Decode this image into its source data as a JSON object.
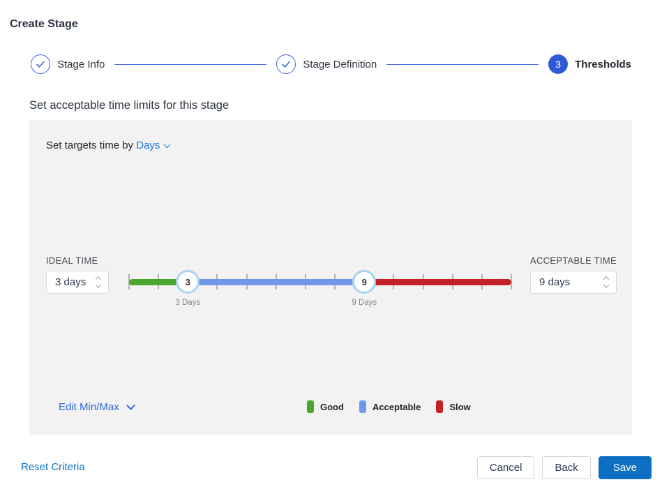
{
  "page_title": "Create Stage",
  "stepper": {
    "steps": [
      {
        "label": "Stage Info",
        "state": "complete"
      },
      {
        "label": "Stage Definition",
        "state": "complete"
      },
      {
        "label": "Thresholds",
        "state": "active",
        "number": "3"
      }
    ]
  },
  "section_heading": "Set acceptable time limits for this stage",
  "panel": {
    "target_prefix": "Set targets time by",
    "target_unit": "Days",
    "ideal": {
      "label": "IDEAL TIME",
      "value": "3 days"
    },
    "acceptable": {
      "label": "ACCEPTABLE TIME",
      "value": "9 days"
    },
    "slider": {
      "min_day": 1,
      "max_day": 14,
      "ideal_day": 3,
      "acceptable_day": 9,
      "ideal_handle_label": "3",
      "acceptable_handle_label": "9",
      "ideal_tick_label": "3 Days",
      "acceptable_tick_label": "9 Days"
    },
    "edit_minmax_label": "Edit Min/Max",
    "legend": [
      {
        "label": "Good",
        "color": "#4ca52d"
      },
      {
        "label": "Acceptable",
        "color": "#7097e8"
      },
      {
        "label": "Slow",
        "color": "#c42127"
      }
    ]
  },
  "footer": {
    "reset_label": "Reset Criteria",
    "cancel_label": "Cancel",
    "back_label": "Back",
    "save_label": "Save"
  },
  "colors": {
    "step_blue": "#3e66e0",
    "step_active": "#2e5bd7",
    "days_link": "#1a73e8",
    "edit_link": "#2e68d9",
    "reset_link": "#0d72c4",
    "save_blue": "#0d6fc2",
    "good_green": "#4ca52d",
    "acceptable_blue": "#7097e8",
    "slow_red": "#c42127"
  }
}
